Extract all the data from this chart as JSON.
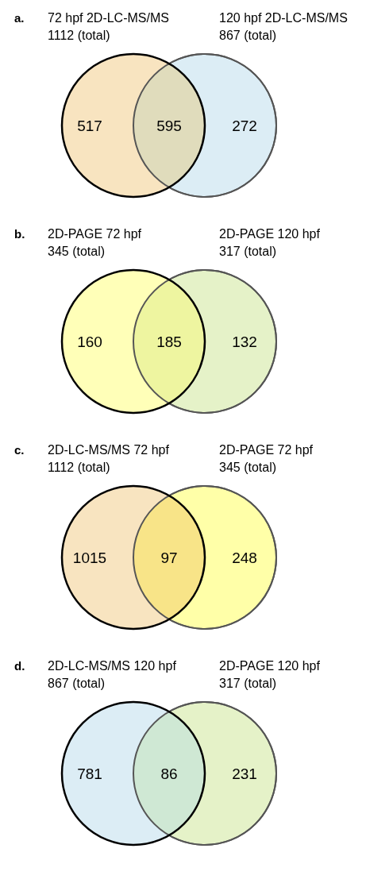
{
  "chart_data": [
    {
      "type": "other",
      "title": "a.",
      "categories": [
        null,
        null,
        null
      ],
      "values": [
        517,
        595,
        272
      ],
      "data_labels": true,
      "colors": [
        "#f8e4c0",
        "#e0dcbc",
        "#dcedf5"
      ],
      "annotations": [
        "72 hpf 2D-LC-MS/MS",
        "1112 (total)",
        "120 hpf 2D-LC-MS/MS",
        "867 (total)"
      ]
    },
    {
      "type": "other",
      "title": "b.",
      "categories": [
        null,
        null,
        null
      ],
      "values": [
        160,
        185,
        132
      ],
      "data_labels": true,
      "colors": [
        "#ffffb8",
        "#eef5a0",
        "#e5f2c8"
      ],
      "annotations": [
        "2D-PAGE 72 hpf",
        "345 (total)",
        "2D-PAGE 120 hpf",
        "317 (total)"
      ]
    },
    {
      "type": "other",
      "title": "c.",
      "categories": [
        null,
        null,
        null
      ],
      "values": [
        1015,
        97,
        248
      ],
      "data_labels": true,
      "colors": [
        "#f8e4c0",
        "#f8e488",
        "#ffffa8"
      ],
      "annotations": [
        "2D-LC-MS/MS 72 hpf",
        "1112 (total)",
        "2D-PAGE 72 hpf",
        "345 (total)"
      ]
    },
    {
      "type": "other",
      "title": "d.",
      "categories": [
        null,
        null,
        null
      ],
      "values": [
        781,
        86,
        231
      ],
      "data_labels": true,
      "colors": [
        "#dcedf5",
        "#cfe8d4",
        "#e5f2c8"
      ],
      "annotations": [
        "2D-LC-MS/MS 120 hpf",
        "867 (total)",
        "2D-PAGE 120 hpf",
        "317 (total)"
      ]
    }
  ]
}
